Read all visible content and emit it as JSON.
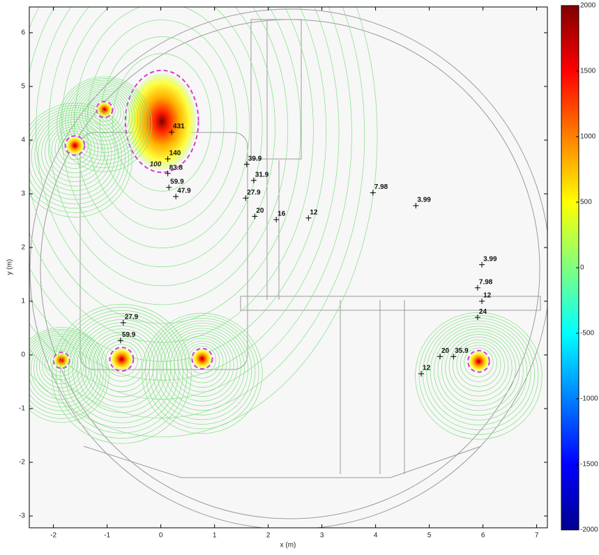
{
  "chart_data": {
    "type": "scatter",
    "xlabel": "x (m)",
    "ylabel": "y (m)",
    "xlim": [
      -2.45,
      7.2
    ],
    "ylim": [
      -3.22,
      6.48
    ],
    "xticks": [
      -2,
      -1,
      0,
      1,
      2,
      3,
      4,
      5,
      6,
      7
    ],
    "yticks": [
      -3,
      -2,
      -1,
      0,
      1,
      2,
      3,
      4,
      5,
      6
    ],
    "points": {
      "x": [
        0.2,
        0.13,
        0.13,
        0.15,
        0.28,
        1.6,
        1.73,
        1.58,
        1.75,
        2.15,
        2.75,
        3.95,
        4.75,
        5.98,
        5.9,
        5.98,
        5.9,
        5.2,
        5.45,
        4.85,
        -0.7,
        -0.75
      ],
      "y": [
        4.15,
        3.65,
        3.38,
        3.12,
        2.95,
        3.55,
        3.25,
        2.92,
        2.58,
        2.52,
        2.55,
        3.02,
        2.78,
        1.68,
        1.25,
        1.0,
        0.7,
        -0.03,
        -0.03,
        -0.35,
        0.6,
        0.27
      ],
      "values": [
        431,
        140,
        83.8,
        59.9,
        47.9,
        39.9,
        31.9,
        27.9,
        20,
        16,
        12,
        7.98,
        3.99,
        3.99,
        7.98,
        12,
        24,
        20,
        35.9,
        12,
        27.9,
        59.9
      ]
    },
    "sources": {
      "x": [
        0.02,
        -1.05,
        -1.6,
        -1.85,
        -0.73,
        0.77,
        5.92
      ],
      "y": [
        4.35,
        4.57,
        3.9,
        -0.1,
        -0.08,
        -0.07,
        -0.12
      ],
      "rx": [
        0.68,
        0.15,
        0.18,
        0.15,
        0.22,
        0.19,
        0.2
      ],
      "ry": [
        0.95,
        0.15,
        0.18,
        0.15,
        0.22,
        0.19,
        0.2
      ]
    },
    "contour_label": {
      "x": -0.1,
      "y": 3.55,
      "text": 100,
      "color": "#d63ad6"
    },
    "contour_color": "#7ee07e",
    "colorbar": {
      "lim": [
        -2000,
        2000
      ],
      "ticks": [
        -2000,
        -1500,
        -1000,
        -500,
        0,
        500,
        1000,
        1500,
        2000
      ],
      "colormap": [
        "#00008f",
        "#0000ff",
        "#0080ff",
        "#00ffff",
        "#80ff80",
        "#ffff00",
        "#ff8000",
        "#ff0000",
        "#800000"
      ]
    }
  }
}
